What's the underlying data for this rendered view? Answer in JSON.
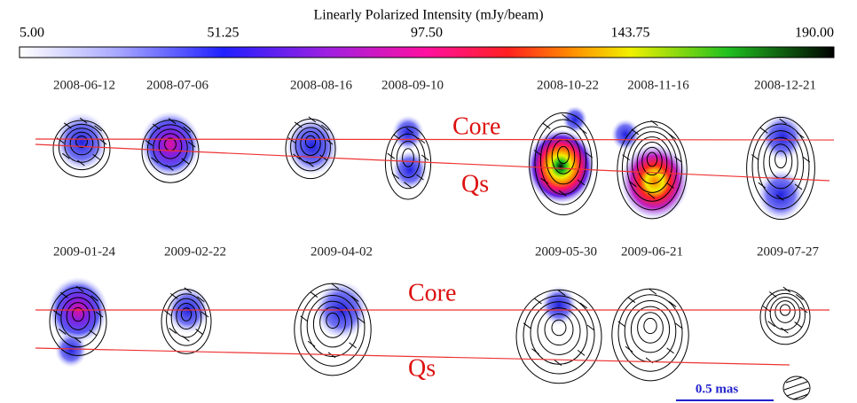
{
  "colorbar": {
    "title": "Linearly Polarized Intensity (mJy/beam)",
    "ticks": [
      "5.00",
      "51.25",
      "97.50",
      "143.75",
      "190.00"
    ]
  },
  "epochs_top": [
    "2008-06-12",
    "2008-07-06",
    "2008-08-16",
    "2008-09-10",
    "2008-10-22",
    "2008-11-16",
    "2008-12-21"
  ],
  "epochs_bottom": [
    "2009-01-24",
    "2009-02-22",
    "2009-04-02",
    "2009-05-30",
    "2009-06-21",
    "2009-07-27"
  ],
  "annotations": {
    "core_top": "Core",
    "qs_top": "Qs",
    "core_bottom": "Core",
    "qs_bottom": "Qs"
  },
  "scale_bar": "0.5 mas"
}
